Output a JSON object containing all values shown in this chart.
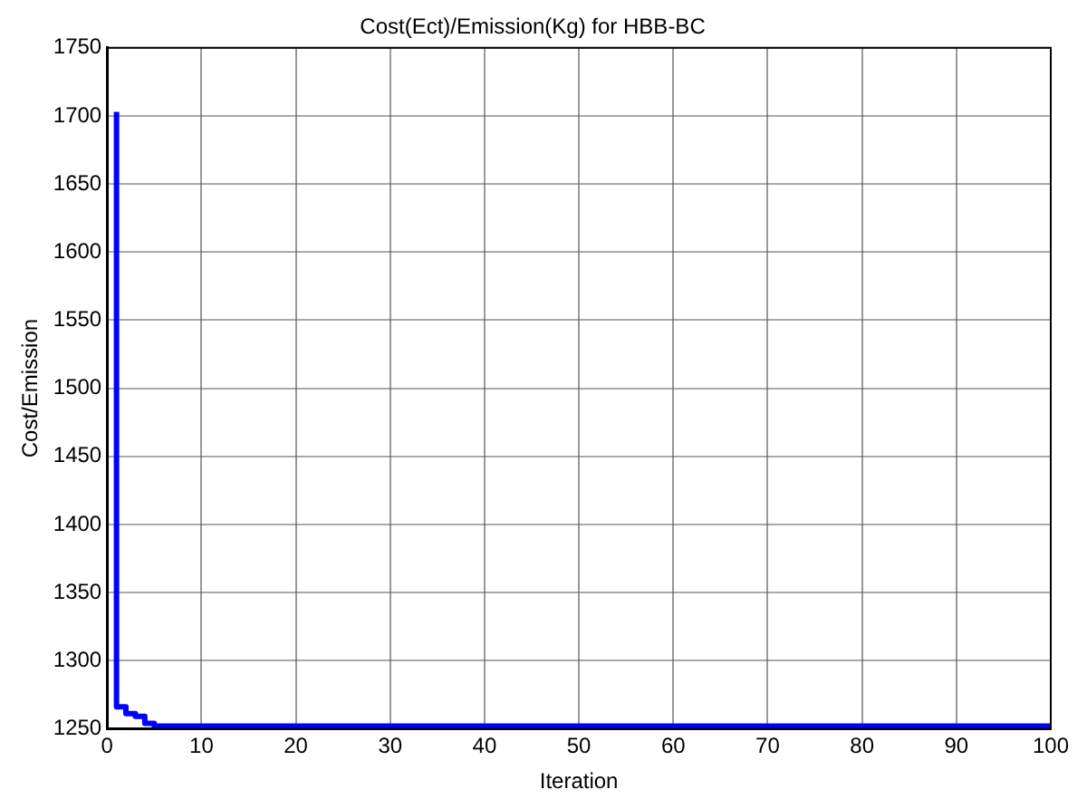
{
  "chart_data": {
    "type": "step",
    "title": "Cost(Ect)/Emission(Kg) for HBB-BC",
    "xlabel": "Iteration",
    "ylabel": "Cost/Emission",
    "x": [
      1,
      2,
      3,
      4,
      5,
      13,
      100
    ],
    "series": [
      {
        "color": "#0000ff",
        "values": [
          1703,
          1266,
          1261,
          1259,
          1254,
          1252,
          1252
        ]
      }
    ],
    "xlim": [
      0,
      100
    ],
    "xticks": [
      0,
      10,
      20,
      30,
      40,
      50,
      60,
      70,
      80,
      90,
      100
    ],
    "ylim": [
      1250,
      1750
    ],
    "yticks": [
      1250,
      1300,
      1350,
      1400,
      1450,
      1500,
      1550,
      1600,
      1650,
      1700,
      1750
    ],
    "grid": true,
    "legend": false,
    "marker": "none",
    "line_style": "solid"
  }
}
